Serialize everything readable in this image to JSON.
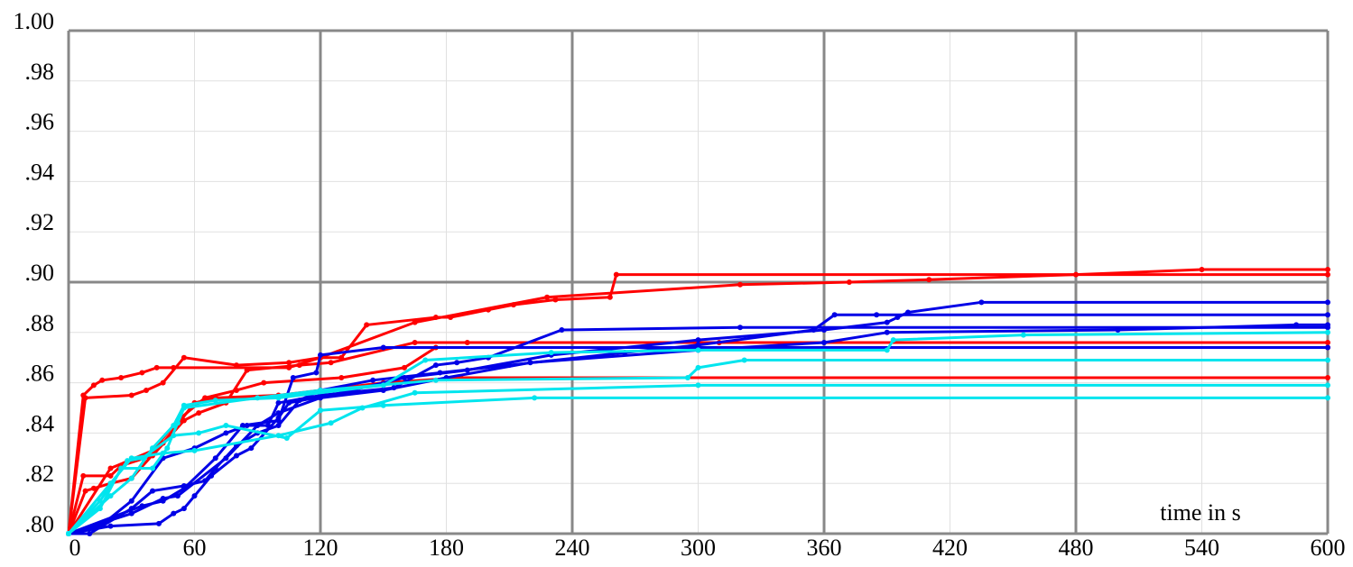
{
  "chart_data": {
    "type": "line",
    "xlabel": "time in s",
    "xlim": [
      0,
      600
    ],
    "xticks": [
      0,
      60,
      120,
      180,
      240,
      300,
      360,
      420,
      480,
      540,
      600
    ],
    "ylim": [
      0.8,
      1.0
    ],
    "yticks": [
      {
        "value": 0.8,
        "label": ".80"
      },
      {
        "value": 0.82,
        "label": ".82"
      },
      {
        "value": 0.84,
        "label": ".84"
      },
      {
        "value": 0.86,
        "label": ".86"
      },
      {
        "value": 0.88,
        "label": ".88"
      },
      {
        "value": 0.9,
        "label": ".90"
      },
      {
        "value": 0.92,
        "label": ".92"
      },
      {
        "value": 0.94,
        "label": ".94"
      },
      {
        "value": 0.96,
        "label": ".96"
      },
      {
        "value": 0.98,
        "label": ".98"
      },
      {
        "value": 1.0,
        "label": "1.00"
      }
    ],
    "grid": true,
    "xgrid_major": [
      0,
      120,
      240,
      360,
      480,
      600
    ],
    "ygrid_major": [
      0.8,
      0.9,
      1.0
    ],
    "series": [
      {
        "color": "#ff0000",
        "x": [
          0,
          7,
          12,
          16,
          25,
          35,
          42,
          50,
          105,
          120,
          130,
          142,
          175,
          182,
          200,
          212,
          232,
          258,
          261,
          600
        ],
        "values": [
          0.8,
          0.855,
          0.859,
          0.861,
          0.862,
          0.864,
          0.866,
          0.866,
          0.866,
          0.87,
          0.87,
          0.883,
          0.886,
          0.886,
          0.889,
          0.891,
          0.893,
          0.894,
          0.903,
          0.903
        ]
      },
      {
        "color": "#ff0000",
        "x": [
          0,
          8,
          30,
          37,
          45,
          55,
          80,
          105,
          120,
          165,
          228,
          320,
          372,
          410,
          480,
          540,
          600
        ],
        "values": [
          0.8,
          0.854,
          0.855,
          0.857,
          0.86,
          0.87,
          0.867,
          0.868,
          0.87,
          0.884,
          0.894,
          0.899,
          0.9,
          0.901,
          0.903,
          0.905,
          0.905
        ]
      },
      {
        "color": "#ff0000",
        "x": [
          0,
          7,
          20,
          25,
          40,
          55,
          62,
          75,
          85,
          110,
          125,
          165,
          190,
          310,
          600
        ],
        "values": [
          0.8,
          0.823,
          0.823,
          0.827,
          0.831,
          0.845,
          0.848,
          0.852,
          0.865,
          0.867,
          0.868,
          0.876,
          0.876,
          0.876,
          0.876
        ]
      },
      {
        "color": "#ff0000",
        "x": [
          0,
          8,
          12,
          20,
          30,
          45,
          60,
          70,
          100,
          120,
          150,
          187,
          600
        ],
        "values": [
          0.8,
          0.817,
          0.818,
          0.82,
          0.822,
          0.836,
          0.852,
          0.854,
          0.855,
          0.857,
          0.86,
          0.862,
          0.862
        ]
      },
      {
        "color": "#ff0000",
        "x": [
          0,
          20,
          40,
          52,
          65,
          80,
          93,
          130,
          160,
          175,
          600
        ],
        "values": [
          0.8,
          0.826,
          0.833,
          0.845,
          0.854,
          0.857,
          0.86,
          0.862,
          0.866,
          0.874,
          0.874
        ]
      },
      {
        "color": "#0000e6",
        "x": [
          0,
          20,
          43,
          50,
          55,
          60,
          68,
          80,
          87,
          100,
          105,
          130,
          160,
          190,
          230,
          300,
          360,
          390,
          395,
          400,
          435,
          600
        ],
        "values": [
          0.8,
          0.803,
          0.804,
          0.808,
          0.81,
          0.815,
          0.823,
          0.831,
          0.834,
          0.846,
          0.852,
          0.856,
          0.862,
          0.865,
          0.871,
          0.877,
          0.881,
          0.884,
          0.886,
          0.888,
          0.892,
          0.892
        ]
      },
      {
        "color": "#0000e6",
        "x": [
          0,
          10,
          30,
          40,
          55,
          65,
          70,
          80,
          90,
          100,
          110,
          120,
          145,
          177,
          210,
          265,
          300,
          355,
          365,
          385,
          600
        ],
        "values": [
          0.8,
          0.8,
          0.81,
          0.817,
          0.819,
          0.821,
          0.826,
          0.835,
          0.84,
          0.843,
          0.853,
          0.857,
          0.861,
          0.864,
          0.867,
          0.872,
          0.875,
          0.881,
          0.887,
          0.887,
          0.887
        ]
      },
      {
        "color": "#0000e6",
        "x": [
          0,
          30,
          45,
          52,
          75,
          90,
          100,
          120,
          150,
          180,
          220,
          300,
          360,
          390,
          500,
          585,
          600
        ],
        "values": [
          0.8,
          0.808,
          0.814,
          0.815,
          0.83,
          0.843,
          0.848,
          0.854,
          0.857,
          0.862,
          0.868,
          0.873,
          0.876,
          0.88,
          0.881,
          0.883,
          0.883
        ]
      },
      {
        "color": "#0000e6",
        "x": [
          0,
          15,
          30,
          45,
          60,
          75,
          85,
          95,
          100,
          120,
          155,
          175,
          185,
          200,
          235,
          320,
          600
        ],
        "values": [
          0.8,
          0.803,
          0.813,
          0.83,
          0.834,
          0.84,
          0.843,
          0.843,
          0.852,
          0.855,
          0.858,
          0.867,
          0.868,
          0.87,
          0.881,
          0.882,
          0.882
        ]
      },
      {
        "color": "#0000e6",
        "x": [
          0,
          35,
          45,
          55,
          70,
          83,
          100,
          107,
          118,
          120,
          150,
          600
        ],
        "values": [
          0.8,
          0.811,
          0.813,
          0.818,
          0.83,
          0.843,
          0.845,
          0.862,
          0.864,
          0.871,
          0.874,
          0.874
        ]
      },
      {
        "color": "#00e5ee",
        "x": [
          0,
          20,
          30,
          40,
          50,
          55,
          70,
          100,
          150,
          170,
          230,
          300,
          390,
          393,
          455,
          600
        ],
        "values": [
          0.8,
          0.815,
          0.822,
          0.834,
          0.843,
          0.851,
          0.853,
          0.854,
          0.859,
          0.869,
          0.872,
          0.873,
          0.873,
          0.877,
          0.879,
          0.88
        ]
      },
      {
        "color": "#00e5ee",
        "x": [
          0,
          15,
          25,
          40,
          47,
          52,
          55,
          90,
          120,
          175,
          295,
          300,
          322,
          600
        ],
        "values": [
          0.8,
          0.81,
          0.826,
          0.826,
          0.834,
          0.844,
          0.85,
          0.854,
          0.857,
          0.861,
          0.862,
          0.866,
          0.869,
          0.869
        ]
      },
      {
        "color": "#00e5ee",
        "x": [
          0,
          20,
          30,
          45,
          60,
          100,
          125,
          140,
          165,
          300,
          600
        ],
        "values": [
          0.8,
          0.82,
          0.83,
          0.832,
          0.833,
          0.839,
          0.844,
          0.85,
          0.856,
          0.859,
          0.859
        ]
      },
      {
        "color": "#00e5ee",
        "x": [
          0,
          15,
          28,
          35,
          50,
          62,
          75,
          104,
          120,
          150,
          222,
          600
        ],
        "values": [
          0.8,
          0.813,
          0.829,
          0.83,
          0.839,
          0.84,
          0.843,
          0.838,
          0.849,
          0.851,
          0.854,
          0.854
        ]
      }
    ]
  }
}
